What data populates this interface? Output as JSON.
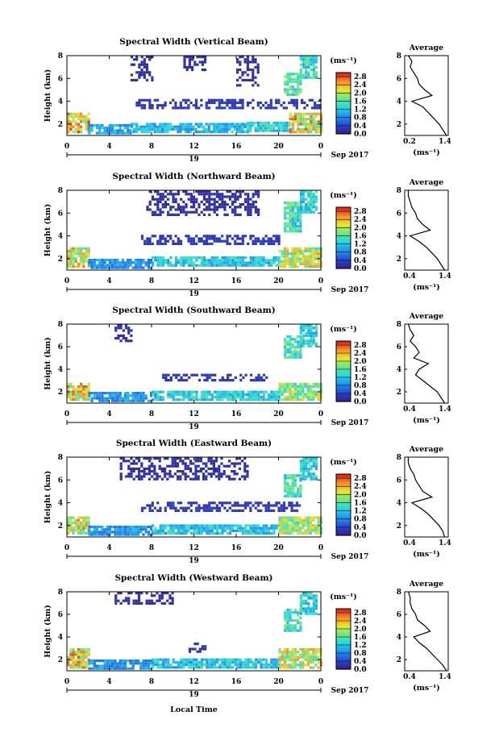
{
  "chart_data": [
    {
      "type": "heatmap",
      "title": "Spectral Width (Vertical Beam)",
      "ylabel": "Height (km)",
      "yticks": [
        "2",
        "4",
        "6",
        "8"
      ],
      "ylim": [
        1,
        8
      ],
      "xticks": [
        "0",
        "4",
        "8",
        "12",
        "16",
        "20",
        "0"
      ],
      "xlim": [
        0,
        24
      ],
      "day_label": "19",
      "date_label": "Sep 2017",
      "colorbar": {
        "unit": "(ms⁻¹)",
        "ticks": [
          "0.0",
          "0.4",
          "0.8",
          "1.2",
          "1.6",
          "2.0",
          "2.4",
          "2.8"
        ],
        "range": [
          0,
          3.0
        ]
      },
      "regions": [
        {
          "t": [
            0.0,
            2.0
          ],
          "h": [
            1.3,
            3.0
          ],
          "w": 2.3
        },
        {
          "t": [
            2.0,
            6.0
          ],
          "h": [
            1.3,
            2.0
          ],
          "w": 1.0
        },
        {
          "t": [
            6.0,
            17.0
          ],
          "h": [
            1.3,
            2.1
          ],
          "w": 1.1
        },
        {
          "t": [
            17.0,
            21.0
          ],
          "h": [
            1.3,
            2.2
          ],
          "w": 1.3
        },
        {
          "t": [
            21.0,
            24.0
          ],
          "h": [
            1.3,
            3.0
          ],
          "w": 2.2
        },
        {
          "t": [
            6.5,
            24.0
          ],
          "h": [
            3.4,
            4.2
          ],
          "w": 0.3
        },
        {
          "t": [
            6.0,
            8.0
          ],
          "h": [
            5.8,
            8.0
          ],
          "w": 0.2
        },
        {
          "t": [
            11.0,
            13.0
          ],
          "h": [
            6.8,
            8.0
          ],
          "w": 0.2
        },
        {
          "t": [
            16.0,
            18.0
          ],
          "h": [
            5.5,
            8.0
          ],
          "w": 0.2
        },
        {
          "t": [
            20.5,
            22.0
          ],
          "h": [
            4.5,
            6.5
          ],
          "w": 1.6
        },
        {
          "t": [
            22.0,
            23.6
          ],
          "h": [
            6.0,
            8.0
          ],
          "w": 1.4
        }
      ],
      "profile": {
        "title": "Average",
        "xlabel": "(ms⁻¹)",
        "xticks": [
          "0.2",
          "1.4"
        ],
        "xlim": [
          0.2,
          1.4
        ],
        "heights": [
          1.0,
          1.5,
          2.0,
          2.5,
          3.0,
          3.5,
          4.0,
          4.5,
          5.0,
          5.5,
          6.0,
          6.5,
          7.0,
          7.5,
          8.0
        ],
        "values": [
          1.35,
          1.25,
          1.15,
          1.0,
          0.85,
          0.7,
          0.4,
          0.95,
          0.75,
          0.6,
          0.55,
          0.45,
          0.35,
          0.4,
          0.3
        ]
      }
    },
    {
      "type": "heatmap",
      "title": "Spectral Width (Northward Beam)",
      "ylabel": "Height (km)",
      "yticks": [
        "2",
        "4",
        "6",
        "8"
      ],
      "ylim": [
        1,
        8
      ],
      "xticks": [
        "0",
        "4",
        "8",
        "12",
        "16",
        "20",
        "0"
      ],
      "xlim": [
        0,
        24
      ],
      "day_label": "19",
      "date_label": "Sep 2017",
      "colorbar": {
        "unit": "(ms⁻¹)",
        "ticks": [
          "0.0",
          "0.4",
          "0.8",
          "1.2",
          "1.6",
          "2.0",
          "2.4",
          "2.8"
        ],
        "range": [
          0,
          3.0
        ]
      },
      "regions": [
        {
          "t": [
            0.0,
            2.0
          ],
          "h": [
            1.3,
            3.0
          ],
          "w": 2.1
        },
        {
          "t": [
            2.0,
            8.0
          ],
          "h": [
            1.3,
            2.0
          ],
          "w": 0.9
        },
        {
          "t": [
            8.0,
            20.0
          ],
          "h": [
            1.3,
            2.2
          ],
          "w": 1.2
        },
        {
          "t": [
            20.0,
            24.0
          ],
          "h": [
            1.3,
            3.0
          ],
          "w": 2.0
        },
        {
          "t": [
            7.0,
            20.0
          ],
          "h": [
            3.4,
            4.1
          ],
          "w": 0.3
        },
        {
          "t": [
            7.5,
            18.0
          ],
          "h": [
            5.8,
            8.0
          ],
          "w": 0.2
        },
        {
          "t": [
            20.5,
            22.0
          ],
          "h": [
            4.5,
            7.0
          ],
          "w": 1.5
        },
        {
          "t": [
            22.0,
            23.6
          ],
          "h": [
            6.0,
            8.0
          ],
          "w": 1.3
        }
      ],
      "profile": {
        "title": "Average",
        "xlabel": "(ms⁻¹)",
        "xticks": [
          "0.4",
          "1.4"
        ],
        "xlim": [
          0.2,
          1.4
        ],
        "heights": [
          1.0,
          1.5,
          2.0,
          2.5,
          3.0,
          3.5,
          4.0,
          4.5,
          5.0,
          5.5,
          6.0,
          6.5,
          7.0,
          7.5,
          8.0
        ],
        "values": [
          1.3,
          1.2,
          1.1,
          0.95,
          0.8,
          0.6,
          0.35,
          0.9,
          0.7,
          0.55,
          0.5,
          0.4,
          0.35,
          0.3,
          0.3
        ]
      }
    },
    {
      "type": "heatmap",
      "title": "Spectral Width (Southward Beam)",
      "ylabel": "Height (km)",
      "yticks": [
        "2",
        "4",
        "6",
        "8"
      ],
      "ylim": [
        1,
        8
      ],
      "xticks": [
        "0",
        "4",
        "8",
        "12",
        "16",
        "20",
        "0"
      ],
      "xlim": [
        0,
        24
      ],
      "day_label": "19",
      "date_label": "Sep 2017",
      "colorbar": {
        "unit": "(ms⁻¹)",
        "ticks": [
          "0.0",
          "0.4",
          "0.8",
          "1.2",
          "1.6",
          "2.0",
          "2.4",
          "2.8"
        ],
        "range": [
          0,
          3.0
        ]
      },
      "regions": [
        {
          "t": [
            0.0,
            2.0
          ],
          "h": [
            1.3,
            2.8
          ],
          "w": 2.2
        },
        {
          "t": [
            2.0,
            8.0
          ],
          "h": [
            1.3,
            2.0
          ],
          "w": 0.9
        },
        {
          "t": [
            8.0,
            20.0
          ],
          "h": [
            1.3,
            2.1
          ],
          "w": 1.3
        },
        {
          "t": [
            20.0,
            24.0
          ],
          "h": [
            1.3,
            2.8
          ],
          "w": 1.8
        },
        {
          "t": [
            9.0,
            19.0
          ],
          "h": [
            3.0,
            3.6
          ],
          "w": 0.3
        },
        {
          "t": [
            4.5,
            6.0
          ],
          "h": [
            6.5,
            8.0
          ],
          "w": 0.2
        },
        {
          "t": [
            20.5,
            22.0
          ],
          "h": [
            5.0,
            7.0
          ],
          "w": 1.5
        },
        {
          "t": [
            22.0,
            23.6
          ],
          "h": [
            6.0,
            8.0
          ],
          "w": 1.3
        }
      ],
      "profile": {
        "title": "Average",
        "xlabel": "(ms⁻¹)",
        "xticks": [
          "0.4",
          "1.4"
        ],
        "xlim": [
          0.2,
          1.4
        ],
        "heights": [
          1.0,
          1.5,
          2.0,
          2.5,
          3.0,
          3.5,
          4.0,
          4.5,
          5.0,
          5.5,
          6.0,
          6.5,
          7.0,
          7.5,
          8.0
        ],
        "values": [
          1.3,
          1.2,
          1.1,
          0.9,
          0.7,
          0.5,
          0.6,
          0.85,
          0.45,
          0.6,
          0.5,
          0.35,
          0.45,
          0.35,
          0.3
        ]
      }
    },
    {
      "type": "heatmap",
      "title": "Spectral Width (Eastward Beam)",
      "ylabel": "Height (km)",
      "yticks": [
        "2",
        "4",
        "6",
        "8"
      ],
      "ylim": [
        1,
        8
      ],
      "xticks": [
        "0",
        "4",
        "8",
        "12",
        "16",
        "20",
        "0"
      ],
      "xlim": [
        0,
        24
      ],
      "day_label": "19",
      "date_label": "Sep 2017",
      "colorbar": {
        "unit": "(ms⁻¹)",
        "ticks": [
          "0.0",
          "0.4",
          "0.8",
          "1.2",
          "1.6",
          "2.0",
          "2.4",
          "2.8"
        ],
        "range": [
          0,
          3.0
        ]
      },
      "regions": [
        {
          "t": [
            0.0,
            2.0
          ],
          "h": [
            1.3,
            2.8
          ],
          "w": 2.1
        },
        {
          "t": [
            2.0,
            8.0
          ],
          "h": [
            1.3,
            2.0
          ],
          "w": 0.9
        },
        {
          "t": [
            8.0,
            20.0
          ],
          "h": [
            1.3,
            2.1
          ],
          "w": 1.2
        },
        {
          "t": [
            20.0,
            24.0
          ],
          "h": [
            1.3,
            2.8
          ],
          "w": 1.9
        },
        {
          "t": [
            7.0,
            22.0
          ],
          "h": [
            3.4,
            4.1
          ],
          "w": 0.3
        },
        {
          "t": [
            5.0,
            17.0
          ],
          "h": [
            6.0,
            8.0
          ],
          "w": 0.2
        },
        {
          "t": [
            20.5,
            22.0
          ],
          "h": [
            4.5,
            6.5
          ],
          "w": 1.5
        },
        {
          "t": [
            22.0,
            23.6
          ],
          "h": [
            6.0,
            8.0
          ],
          "w": 1.3
        }
      ],
      "profile": {
        "title": "Average",
        "xlabel": "(ms⁻¹)",
        "xticks": [
          "0.4",
          "1.4"
        ],
        "xlim": [
          0.2,
          1.4
        ],
        "heights": [
          1.0,
          1.5,
          2.0,
          2.5,
          3.0,
          3.5,
          4.0,
          4.5,
          5.0,
          5.5,
          6.0,
          6.5,
          7.0,
          7.5,
          8.0
        ],
        "values": [
          1.3,
          1.25,
          1.15,
          1.0,
          0.85,
          0.65,
          0.4,
          0.95,
          0.7,
          0.6,
          0.5,
          0.45,
          0.35,
          0.3,
          0.3
        ]
      }
    },
    {
      "type": "heatmap",
      "title": "Spectral Width (Westward Beam)",
      "ylabel": "Height (km)",
      "yticks": [
        "2",
        "4",
        "6",
        "8"
      ],
      "ylim": [
        1,
        8
      ],
      "xticks": [
        "0",
        "4",
        "8",
        "12",
        "16",
        "20",
        "0"
      ],
      "xlim": [
        0,
        24
      ],
      "day_label": "19",
      "date_label": "Sep 2017",
      "xlabel": "Local Time",
      "colorbar": {
        "unit": "(ms⁻¹)",
        "ticks": [
          "0.0",
          "0.4",
          "0.8",
          "1.2",
          "1.6",
          "2.0",
          "2.4",
          "2.8"
        ],
        "range": [
          0,
          3.0
        ]
      },
      "regions": [
        {
          "t": [
            0.0,
            2.0
          ],
          "h": [
            1.3,
            3.0
          ],
          "w": 2.2
        },
        {
          "t": [
            2.0,
            8.0
          ],
          "h": [
            1.3,
            2.0
          ],
          "w": 0.9
        },
        {
          "t": [
            8.0,
            20.0
          ],
          "h": [
            1.3,
            2.1
          ],
          "w": 1.2
        },
        {
          "t": [
            20.0,
            24.0
          ],
          "h": [
            1.3,
            3.0
          ],
          "w": 2.0
        },
        {
          "t": [
            11.5,
            13.0
          ],
          "h": [
            2.8,
            3.5
          ],
          "w": 0.3
        },
        {
          "t": [
            4.5,
            10.0
          ],
          "h": [
            7.0,
            8.0
          ],
          "w": 0.2
        },
        {
          "t": [
            20.5,
            22.0
          ],
          "h": [
            4.5,
            6.5
          ],
          "w": 1.5
        },
        {
          "t": [
            22.0,
            23.6
          ],
          "h": [
            6.0,
            8.0
          ],
          "w": 1.3
        }
      ],
      "profile": {
        "title": "Average",
        "xlabel": "(ms⁻¹)",
        "xticks": [
          "0.4",
          "1.4"
        ],
        "xlim": [
          0.2,
          1.4
        ],
        "heights": [
          1.0,
          1.5,
          2.0,
          2.5,
          3.0,
          3.5,
          4.0,
          4.5,
          5.0,
          5.5,
          6.0,
          6.5,
          7.0,
          7.5,
          8.0
        ],
        "values": [
          1.35,
          1.25,
          1.1,
          0.95,
          0.8,
          0.6,
          0.45,
          0.9,
          0.75,
          0.55,
          0.5,
          0.4,
          0.35,
          0.35,
          0.3
        ]
      }
    }
  ]
}
